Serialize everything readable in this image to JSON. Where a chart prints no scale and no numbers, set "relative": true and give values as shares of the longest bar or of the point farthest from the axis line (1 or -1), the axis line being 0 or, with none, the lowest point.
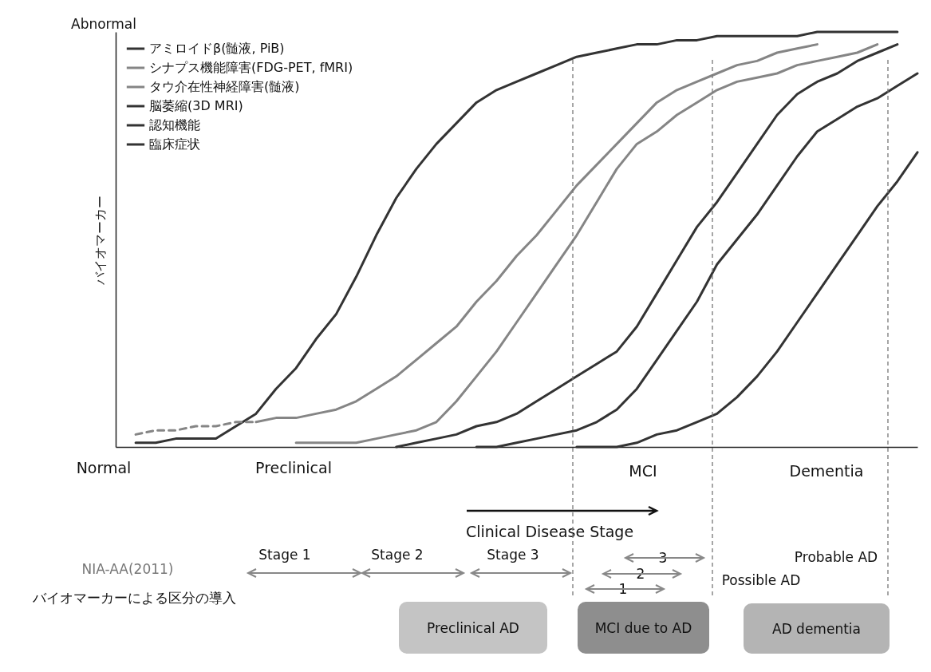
{
  "chart_data": {
    "type": "line",
    "relative": true,
    "ylabel": "バイオマーカー",
    "legend": "top left",
    "marker": "none",
    "categories": [
      null,
      null,
      null,
      null,
      null,
      null,
      null,
      null,
      null,
      null,
      null,
      null,
      null,
      null,
      null,
      null,
      null,
      null,
      null,
      null,
      null,
      null,
      null,
      null,
      null,
      null,
      null,
      null,
      null,
      null,
      null,
      null,
      null,
      null,
      null,
      null,
      null,
      null,
      null,
      null,
      null
    ],
    "series": [
      {
        "name": "アミロイドβ(髄液, PiB)",
        "color": "#333333",
        "values": [
          null,
          0.01,
          0.01,
          0.02,
          0.02,
          0.02,
          0.05,
          0.08,
          0.14,
          0.19,
          0.26,
          0.32,
          0.41,
          0.51,
          0.6,
          0.67,
          0.73,
          0.78,
          0.83,
          0.86,
          0.88,
          0.9,
          0.92,
          0.94,
          0.95,
          0.96,
          0.97,
          0.97,
          0.98,
          0.98,
          0.99,
          0.99,
          0.99,
          0.99,
          0.99,
          1,
          1,
          1,
          1,
          1,
          null
        ]
      },
      {
        "name": "シナプス機能障害(FDG-PET, fMRI)",
        "color": "#858585",
        "values": [
          null,
          null,
          null,
          null,
          null,
          null,
          null,
          0.06,
          0.07,
          0.07,
          0.08,
          0.09,
          0.11,
          0.14,
          0.17,
          0.21,
          0.25,
          0.29,
          0.35,
          0.4,
          0.46,
          0.51,
          0.57,
          0.63,
          0.68,
          0.73,
          0.78,
          0.83,
          0.86,
          0.88,
          0.9,
          0.92,
          0.93,
          0.95,
          0.96,
          0.97,
          null,
          null,
          null,
          null,
          null
        ]
      },
      {
        "name": "タウ介在性神経障害(髄液)",
        "color": "#858585",
        "values": [
          null,
          null,
          null,
          null,
          null,
          null,
          null,
          null,
          null,
          0.01,
          0.01,
          0.01,
          0.01,
          0.02,
          0.03,
          0.04,
          0.06,
          0.11,
          0.17,
          0.23,
          0.3,
          0.37,
          0.44,
          0.51,
          0.59,
          0.67,
          0.73,
          0.76,
          0.8,
          0.83,
          0.86,
          0.88,
          0.89,
          0.9,
          0.92,
          0.93,
          0.94,
          0.95,
          0.97,
          null,
          null
        ]
      },
      {
        "name": "脳萎縮(3D MRI)",
        "color": "#333333",
        "values": [
          null,
          null,
          null,
          null,
          null,
          null,
          null,
          null,
          null,
          null,
          null,
          null,
          null,
          null,
          0,
          0.01,
          0.02,
          0.03,
          0.05,
          0.06,
          0.08,
          0.11,
          0.14,
          0.17,
          0.2,
          0.23,
          0.29,
          0.37,
          0.45,
          0.53,
          0.59,
          0.66,
          0.73,
          0.8,
          0.85,
          0.88,
          0.9,
          0.93,
          0.95,
          0.97,
          null
        ]
      },
      {
        "name": "認知機能",
        "color": "#333333",
        "values": [
          null,
          null,
          null,
          null,
          null,
          null,
          null,
          null,
          null,
          null,
          null,
          null,
          null,
          null,
          null,
          null,
          null,
          null,
          0,
          0,
          0.01,
          0.02,
          0.03,
          0.04,
          0.06,
          0.09,
          0.14,
          0.21,
          0.28,
          0.35,
          0.44,
          0.5,
          0.56,
          0.63,
          0.7,
          0.76,
          0.79,
          0.82,
          0.84,
          0.87,
          0.9
        ]
      },
      {
        "name": "臨床症状",
        "color": "#333333",
        "values": [
          null,
          null,
          null,
          null,
          null,
          null,
          null,
          null,
          null,
          null,
          null,
          null,
          null,
          null,
          null,
          null,
          null,
          null,
          null,
          null,
          null,
          null,
          null,
          0,
          0,
          0,
          0.01,
          0.03,
          0.04,
          0.06,
          0.08,
          0.12,
          0.17,
          0.23,
          0.3,
          0.37,
          0.44,
          0.51,
          0.58,
          0.64,
          0.71
        ]
      },
      {
        "color": "#858585",
        "line_style": "dashed",
        "values": [
          null,
          0.03,
          0.04,
          0.04,
          0.05,
          0.05,
          0.06,
          0.06,
          null,
          null,
          null,
          null,
          null,
          null,
          null,
          null,
          null,
          null,
          null,
          null,
          null,
          null,
          null,
          null,
          null,
          null,
          null,
          null,
          null,
          null,
          null,
          null,
          null,
          null,
          null,
          null,
          null,
          null,
          null,
          null,
          null
        ]
      }
    ],
    "annotations": [
      "Abnormal",
      "Normal",
      "Preclinical",
      "MCI",
      "Dementia",
      "Clinical Disease Stage",
      "NIA-AA(2011)",
      "バイオマーカーによる区分の導入",
      "Stage 1",
      "Stage 2",
      "Stage 3",
      "3",
      "2",
      "1",
      "Probable AD",
      "Possible AD",
      "Preclinical AD",
      "MCI due to AD",
      "AD dementia"
    ]
  }
}
